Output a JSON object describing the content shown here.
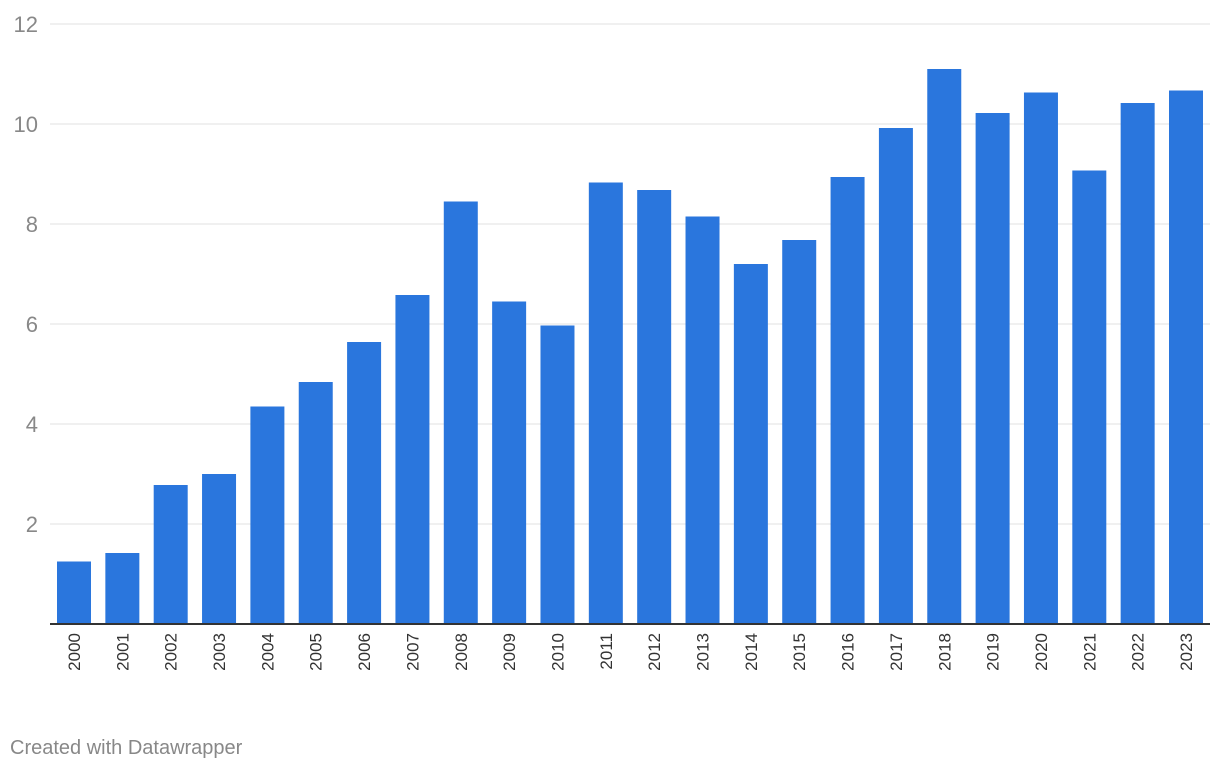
{
  "chart_data": {
    "type": "bar",
    "categories": [
      "2000",
      "2001",
      "2002",
      "2003",
      "2004",
      "2005",
      "2006",
      "2007",
      "2008",
      "2009",
      "2010",
      "2011",
      "2012",
      "2013",
      "2014",
      "2015",
      "2016",
      "2017",
      "2018",
      "2019",
      "2020",
      "2021",
      "2022",
      "2023"
    ],
    "values": [
      1.25,
      1.42,
      2.78,
      3.0,
      4.35,
      4.84,
      5.64,
      6.58,
      8.45,
      6.45,
      5.97,
      8.83,
      8.68,
      8.15,
      7.2,
      7.68,
      8.94,
      9.92,
      11.1,
      10.22,
      10.63,
      9.07,
      10.42,
      10.67
    ],
    "ylim": [
      0,
      12
    ],
    "yticks": [
      2,
      4,
      6,
      8,
      10,
      12
    ],
    "title": "",
    "xlabel": "",
    "ylabel": "",
    "grid": true,
    "bar_color": "#2a76dd"
  },
  "footer": {
    "credit": "Created with Datawrapper"
  }
}
